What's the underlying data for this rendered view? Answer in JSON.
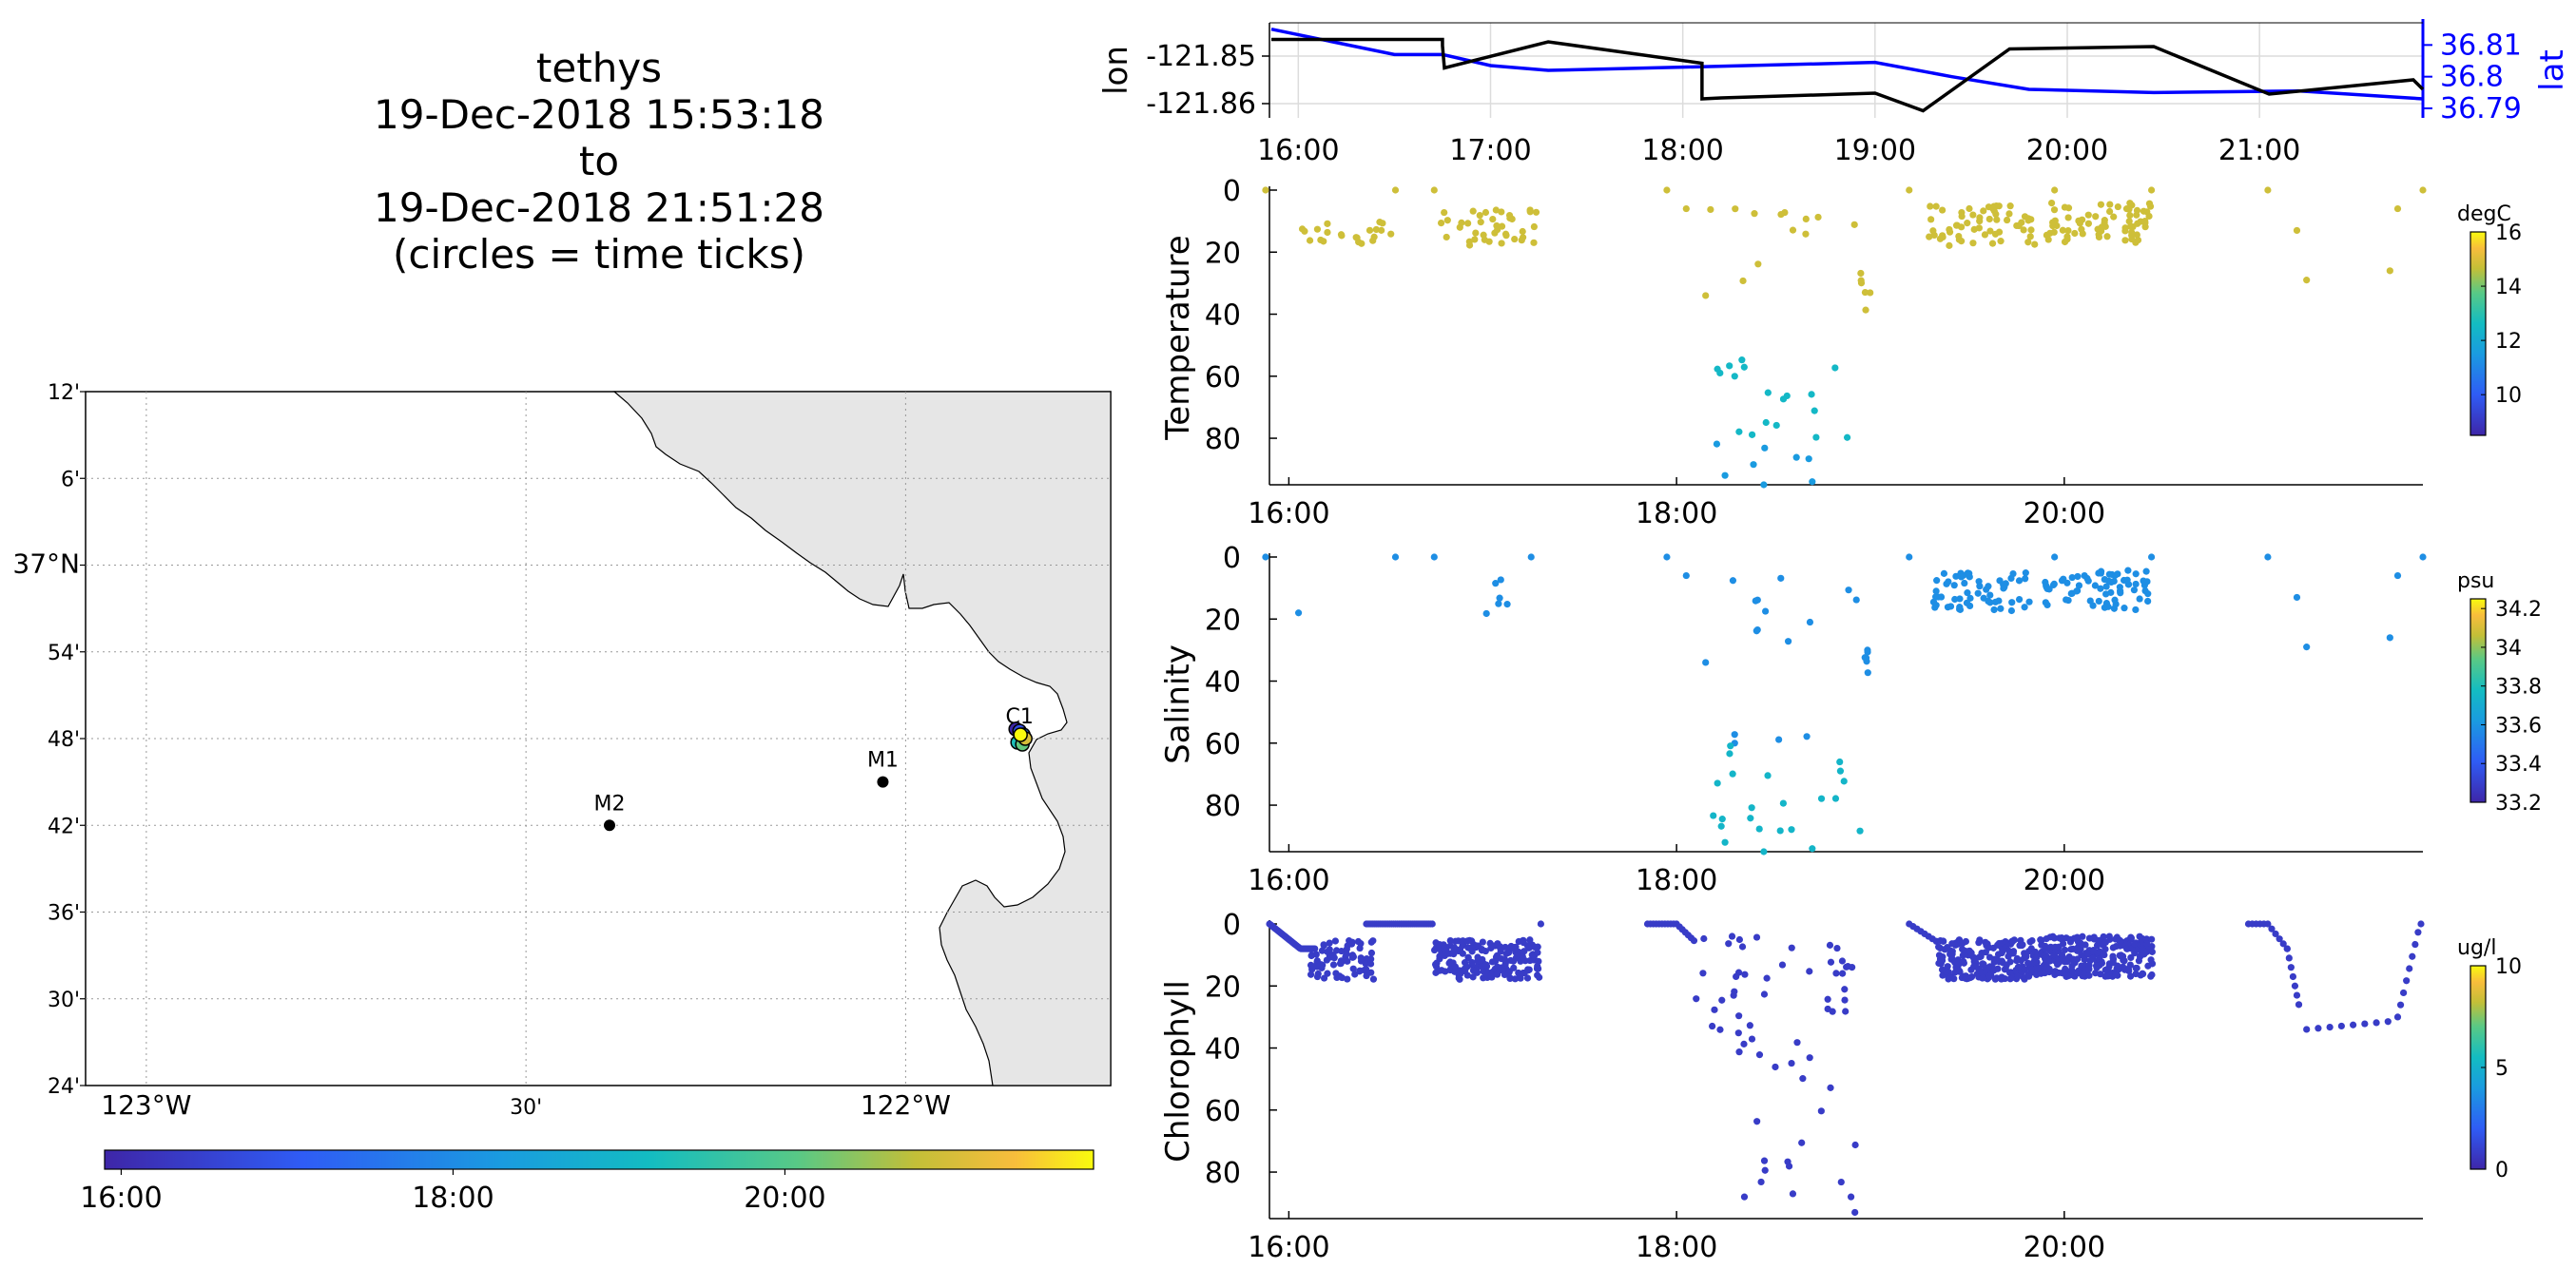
{
  "title": {
    "lines": [
      "tethys",
      "19-Dec-2018 15:53:18",
      "to",
      "19-Dec-2018 21:51:28",
      "(circles = time ticks)"
    ]
  },
  "colors": {
    "land": "#e6e6e6",
    "lon_line": "#000000",
    "lat_line": "#0000ff",
    "parula_low": "#3e26a8",
    "parula_mid": "#1fb6c9",
    "parula_high": "#f9fb0e"
  },
  "chart_data": [
    {
      "type": "line",
      "name": "track",
      "ylabel_left": "lon",
      "ylabel_right": "lat",
      "xlim": [
        15.85,
        21.85
      ],
      "x_ticks": [
        "16:00",
        "17:00",
        "18:00",
        "19:00",
        "20:00",
        "21:00"
      ],
      "ylim_left": [
        -121.863,
        -121.843
      ],
      "yticks_left": [
        "-121.85",
        "-121.86"
      ],
      "ylim_right": [
        36.787,
        36.817
      ],
      "yticks_right": [
        "36.81",
        "36.8",
        "36.79"
      ],
      "series": [
        {
          "values_x": [
            15.86,
            16.75,
            16.75,
            16.76,
            17.3,
            18.1,
            18.1,
            18.2,
            19.0,
            19.25,
            19.7,
            20.45,
            21.05,
            21.8,
            21.85
          ],
          "values_y": [
            -121.8465,
            -121.8465,
            -121.8478,
            -121.8525,
            -121.847,
            -121.8515,
            -121.859,
            -121.8588,
            -121.8578,
            -121.8615,
            -121.8485,
            -121.848,
            -121.858,
            -121.855,
            -121.857
          ]
        },
        {
          "values_x": [
            15.86,
            16.5,
            16.75,
            17.0,
            17.3,
            18.0,
            19.0,
            19.4,
            19.8,
            20.45,
            21.2,
            21.85
          ],
          "values_y": [
            36.815,
            36.807,
            36.807,
            36.8035,
            36.802,
            36.803,
            36.8045,
            36.8,
            36.796,
            36.795,
            36.7955,
            36.793
          ]
        }
      ]
    },
    {
      "type": "scatter",
      "name": "temperature",
      "ylabel": "Temperature",
      "unit": "degC",
      "xlim": [
        15.9,
        21.85
      ],
      "ylim": [
        95,
        0
      ],
      "x_ticks": [
        "16:00",
        "18:00",
        "20:00"
      ],
      "y_ticks": [
        "0",
        "20",
        "40",
        "60",
        "80"
      ],
      "colorbar": {
        "range": [
          8.5,
          16
        ],
        "ticks": [
          "16",
          "14",
          "12",
          "10"
        ]
      }
    },
    {
      "type": "scatter",
      "name": "salinity",
      "ylabel": "Salinity",
      "unit": "psu",
      "xlim": [
        15.9,
        21.85
      ],
      "ylim": [
        95,
        0
      ],
      "x_ticks": [
        "16:00",
        "18:00",
        "20:00"
      ],
      "y_ticks": [
        "0",
        "20",
        "40",
        "60",
        "80"
      ],
      "colorbar": {
        "range": [
          33.2,
          34.25
        ],
        "ticks": [
          "34.2",
          "34",
          "33.8",
          "33.6",
          "33.4",
          "33.2"
        ]
      }
    },
    {
      "type": "scatter",
      "name": "chlorophyll",
      "ylabel": "Chlorophyll",
      "unit": "ug/l",
      "xlim": [
        15.9,
        21.85
      ],
      "ylim": [
        95,
        0
      ],
      "x_ticks": [
        "16:00",
        "18:00",
        "20:00"
      ],
      "y_ticks": [
        "0",
        "20",
        "40",
        "60",
        "80"
      ],
      "colorbar": {
        "range": [
          0,
          10
        ],
        "ticks": [
          "10",
          "5",
          "0"
        ]
      }
    }
  ],
  "map": {
    "lat_ticks": [
      "12'",
      "6'",
      "37°N",
      "54'",
      "48'",
      "42'",
      "36'",
      "30'",
      "24'"
    ],
    "lon_ticks": [
      "123°W",
      "30'",
      "122°W"
    ],
    "stations": [
      {
        "label": "M2",
        "lon": -122.39,
        "lat": 36.7
      },
      {
        "label": "M1",
        "lon": -122.03,
        "lat": 36.75
      },
      {
        "label": "C1",
        "lon": -121.85,
        "lat": 36.8
      }
    ],
    "time_colorbar_ticks": [
      "16:00",
      "18:00",
      "20:00"
    ]
  }
}
